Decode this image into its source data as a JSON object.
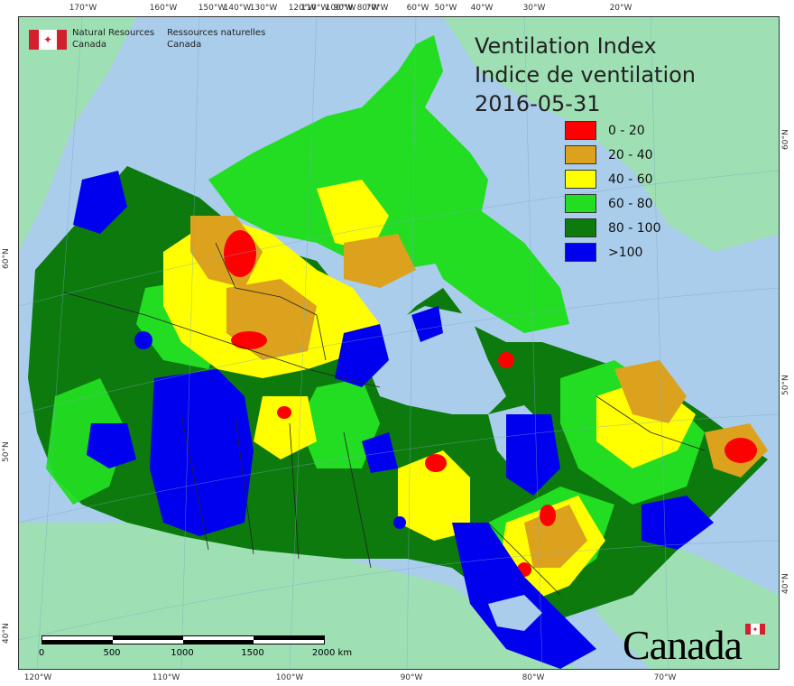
{
  "agency": {
    "en_line1": "Natural Resources",
    "en_line2": "Canada",
    "fr_line1": "Ressources naturelles",
    "fr_line2": "Canada",
    "flag_icon": "maple-leaf-icon"
  },
  "title": {
    "line1": "Ventilation Index",
    "line2": "Indice de ventilation",
    "date": "2016-05-31"
  },
  "legend": [
    {
      "label": "0 - 20",
      "color": "#ff0000"
    },
    {
      "label": "20 - 40",
      "color": "#dca21e"
    },
    {
      "label": "40 - 60",
      "color": "#ffff00"
    },
    {
      "label": "60 - 80",
      "color": "#22dd22"
    },
    {
      "label": "80 - 100",
      "color": "#0d7a0d"
    },
    {
      "label": ">100",
      "color": "#0000ee"
    }
  ],
  "ticks": {
    "top": [
      "170°W",
      "160°W",
      "150°W",
      "140°W",
      "130°W",
      "120°W",
      "110°W",
      "100°W",
      "90°W",
      "80°W",
      "70°W",
      "60°W",
      "50°W",
      "40°W",
      "30°W",
      "20°W"
    ],
    "bottom": [
      "120°W",
      "110°W",
      "100°W",
      "90°W",
      "80°W",
      "70°W"
    ],
    "left": [
      "60°N",
      "50°N",
      "40°N"
    ],
    "right": [
      "60°N",
      "50°N",
      "40°N"
    ]
  },
  "scale": {
    "labels": [
      "0",
      "500",
      "1000",
      "1500",
      "2000 km"
    ]
  },
  "wordmark": "Canada",
  "colors": {
    "ocean": "#a9cdea",
    "land": "#9ee0b4",
    "boundary": "#222222"
  }
}
